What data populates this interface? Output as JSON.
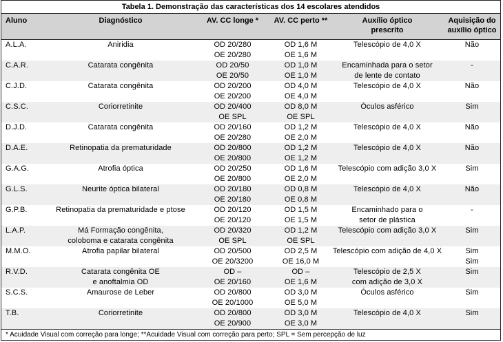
{
  "title": "Tabela 1. Demonstração das características dos 14 escolares atendidos",
  "headers": {
    "aluno": "Aluno",
    "diagnostico": "Diagnóstico",
    "av_longe": "AV. CC longe *",
    "av_perto": "AV. CC perto **",
    "auxilio": [
      "Auxílio óptico",
      "prescrito"
    ],
    "aquisicao": [
      "Aquisição do",
      "auxílio óptico"
    ]
  },
  "rows": [
    {
      "aluno": "A.L.A.",
      "diagnostico": [
        "Aniridia"
      ],
      "longe": [
        "OD 20/280",
        "OE 20/280"
      ],
      "perto": [
        "OD 1,6 M",
        "OE 1,6 M"
      ],
      "auxilio": [
        "Telescópio de 4,0 X"
      ],
      "aquisicao": [
        "Não"
      ]
    },
    {
      "aluno": "C.A.R.",
      "diagnostico": [
        "Catarata congênita"
      ],
      "longe": [
        "OD 20/50",
        "OE 20/50"
      ],
      "perto": [
        "OD 1,0 M",
        "OE 1,0 M"
      ],
      "auxilio": [
        "Encaminhada para o setor",
        "de lente de contato"
      ],
      "aquisicao": [
        "-"
      ]
    },
    {
      "aluno": "C.J.D.",
      "diagnostico": [
        "Catarata congênita"
      ],
      "longe": [
        "OD 20/200",
        "OE 20/200"
      ],
      "perto": [
        "OD 4,0 M",
        "OE 4,0 M"
      ],
      "auxilio": [
        "Telescópio de 4,0 X"
      ],
      "aquisicao": [
        "Não"
      ]
    },
    {
      "aluno": "C.S.C.",
      "diagnostico": [
        "Coriorretinite"
      ],
      "longe": [
        "OD 20/400",
        "OE SPL"
      ],
      "perto": [
        "OD 8,0 M",
        "OE SPL"
      ],
      "auxilio": [
        "Óculos asférico"
      ],
      "aquisicao": [
        "Sim"
      ]
    },
    {
      "aluno": "D.J.D.",
      "diagnostico": [
        "Catarata congênita"
      ],
      "longe": [
        "OD 20/160",
        "OE 20/280"
      ],
      "perto": [
        "OD 1,2 M",
        "OE 2,0 M"
      ],
      "auxilio": [
        "Telescópio de 4,0 X"
      ],
      "aquisicao": [
        "Não"
      ]
    },
    {
      "aluno": "D.A.E.",
      "diagnostico": [
        "Retinopatia da prematuridade"
      ],
      "longe": [
        "OD 20/800",
        "OE 20/800"
      ],
      "perto": [
        "OD 1,2 M",
        "OE 1,2 M"
      ],
      "auxilio": [
        "Telescópio de 4,0 X"
      ],
      "aquisicao": [
        "Não"
      ]
    },
    {
      "aluno": "G.A.G.",
      "diagnostico": [
        "Atrofia óptica"
      ],
      "longe": [
        "OD 20/250",
        "OE 20/800"
      ],
      "perto": [
        "OD 1,6 M",
        "OE 2,0 M"
      ],
      "auxilio": [
        "Telescópio com adição 3,0 X"
      ],
      "aquisicao": [
        "Sim"
      ]
    },
    {
      "aluno": "G.L.S.",
      "diagnostico": [
        "Neurite óptica bilateral"
      ],
      "longe": [
        "OD 20/180",
        "OE 20/180"
      ],
      "perto": [
        "OD 0,8 M",
        "OE 0,8 M"
      ],
      "auxilio": [
        "Telescópio de 4,0 X"
      ],
      "aquisicao": [
        "Não"
      ]
    },
    {
      "aluno": "G.P.B.",
      "diagnostico": [
        "Retinopatia da prematuridade e ptose"
      ],
      "longe": [
        "OD 20/120",
        "OE 20/120"
      ],
      "perto": [
        "OD 1,5 M",
        "OE 1,5 M"
      ],
      "auxilio": [
        "Encaminhado para o",
        "setor de plástica"
      ],
      "aquisicao": [
        "-"
      ]
    },
    {
      "aluno": "L.A.P.",
      "diagnostico": [
        "Má Formação congênita,",
        "coloboma e catarata congênita"
      ],
      "longe": [
        "OD 20/320",
        "OE SPL"
      ],
      "perto": [
        "OD 1,2 M",
        "OE SPL"
      ],
      "auxilio": [
        "Telescópio com adição 3,0 X"
      ],
      "aquisicao": [
        "Sim"
      ]
    },
    {
      "aluno": "M.M.O.",
      "diagnostico": [
        "Atrofia papilar bilateral"
      ],
      "longe": [
        "OD 20/500",
        "OE 20/3200"
      ],
      "perto": [
        "OD 2,5 M",
        "OE 16,0 M"
      ],
      "auxilio": [
        "Telescópio com adição de 4,0 X"
      ],
      "aquisicao": [
        "Sim",
        "Sim"
      ]
    },
    {
      "aluno": "R.V.D.",
      "diagnostico": [
        "Catarata congênita OE",
        "e anoftalmia OD"
      ],
      "longe": [
        "OD –",
        "OE 20/160"
      ],
      "perto": [
        "OD –",
        "OE 1,6 M"
      ],
      "auxilio": [
        "Telescópio de 2,5 X",
        "com adição de 3,0 X"
      ],
      "aquisicao": [
        "Sim"
      ]
    },
    {
      "aluno": "S.C.S.",
      "diagnostico": [
        "Amaurose de Leber"
      ],
      "longe": [
        "OD 20/800",
        "OE 20/1000"
      ],
      "perto": [
        "OD 3,0 M",
        "OE 5,0 M"
      ],
      "auxilio": [
        "Óculos asférico"
      ],
      "aquisicao": [
        "Sim"
      ]
    },
    {
      "aluno": "T.B.",
      "diagnostico": [
        "Coriorretinite"
      ],
      "longe": [
        "OD 20/800",
        "OE 20/900"
      ],
      "perto": [
        "OD 3,0 M",
        "OE 3,0 M"
      ],
      "auxilio": [
        "Telescópio de 4,0 X"
      ],
      "aquisicao": [
        "Sim"
      ]
    }
  ],
  "footnote": "* Acuidade Visual com correção para longe; **Acuidade Visual com correção para perto; SPL = Sem percepção de luz"
}
